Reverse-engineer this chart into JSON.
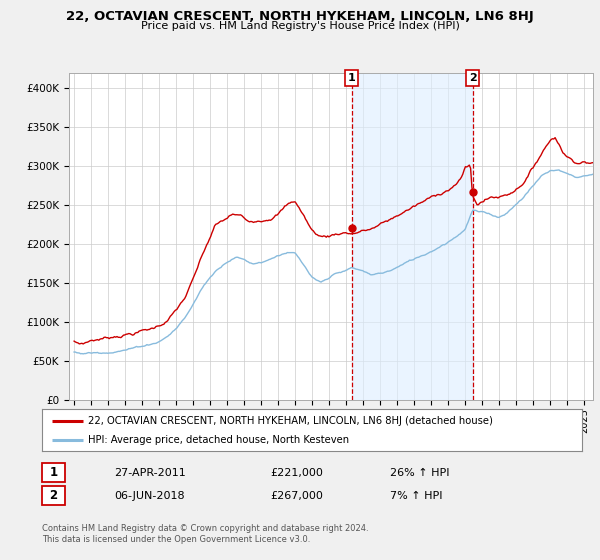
{
  "title": "22, OCTAVIAN CRESCENT, NORTH HYKEHAM, LINCOLN, LN6 8HJ",
  "subtitle": "Price paid vs. HM Land Registry's House Price Index (HPI)",
  "xlim": [
    1994.7,
    2025.5
  ],
  "ylim": [
    0,
    420000
  ],
  "yticks": [
    0,
    50000,
    100000,
    150000,
    200000,
    250000,
    300000,
    350000,
    400000
  ],
  "ytick_labels": [
    "£0",
    "£50K",
    "£100K",
    "£150K",
    "£200K",
    "£250K",
    "£300K",
    "£350K",
    "£400K"
  ],
  "sale_color": "#cc0000",
  "hpi_color": "#88bbdd",
  "shade_color": "#ddeeff",
  "vline_color": "#cc0000",
  "sale1_x": 2011.32,
  "sale1_y": 221000,
  "sale2_x": 2018.43,
  "sale2_y": 267000,
  "sale1_label": "27-APR-2011",
  "sale1_price": "£221,000",
  "sale1_pct": "26% ↑ HPI",
  "sale2_label": "06-JUN-2018",
  "sale2_price": "£267,000",
  "sale2_pct": "7% ↑ HPI",
  "legend1": "22, OCTAVIAN CRESCENT, NORTH HYKEHAM, LINCOLN, LN6 8HJ (detached house)",
  "legend2": "HPI: Average price, detached house, North Kesteven",
  "footnote": "Contains HM Land Registry data © Crown copyright and database right 2024.\nThis data is licensed under the Open Government Licence v3.0.",
  "bg_color": "#f0f0f0",
  "plot_bg": "#ffffff",
  "grid_color": "#cccccc"
}
